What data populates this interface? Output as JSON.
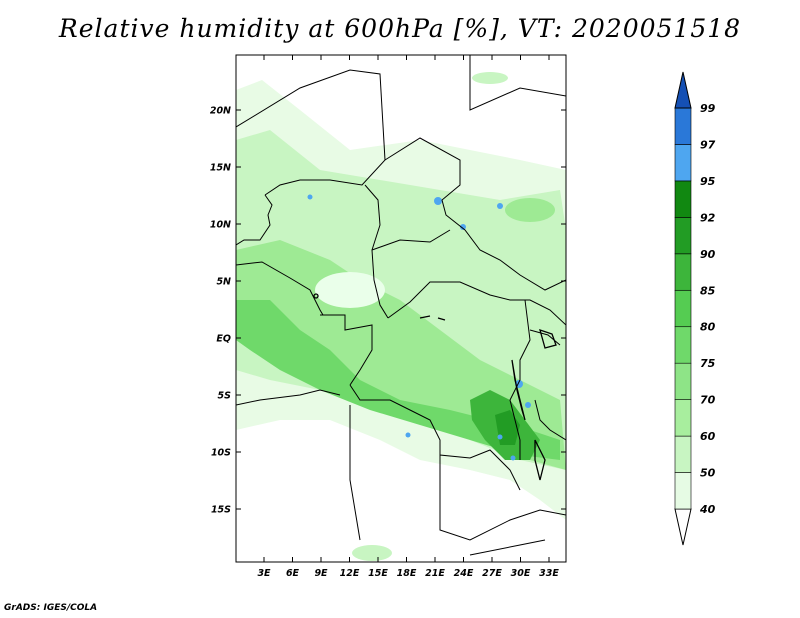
{
  "title": "Relative humidity at 600hPa [%], VT: 2020051518",
  "credit": "GrADS: IGES/COLA",
  "map": {
    "lat_labels": [
      "20N",
      "15N",
      "10N",
      "5N",
      "EQ",
      "5S",
      "10S",
      "15S"
    ],
    "lon_labels": [
      "3E",
      "6E",
      "9E",
      "12E",
      "15E",
      "18E",
      "21E",
      "24E",
      "27E",
      "30E",
      "33E"
    ]
  },
  "colorbar": {
    "levels": [
      "40",
      "50",
      "60",
      "70",
      "75",
      "80",
      "85",
      "90",
      "92",
      "95",
      "97",
      "99"
    ],
    "colors": [
      "#ffffff",
      "#e6fbe4",
      "#c8f5c2",
      "#a8ee9e",
      "#8ee487",
      "#6fd96a",
      "#55cc52",
      "#3db53b",
      "#229c24",
      "#118811",
      "#4ea6f0",
      "#2a78d8",
      "#1550b4"
    ]
  }
}
